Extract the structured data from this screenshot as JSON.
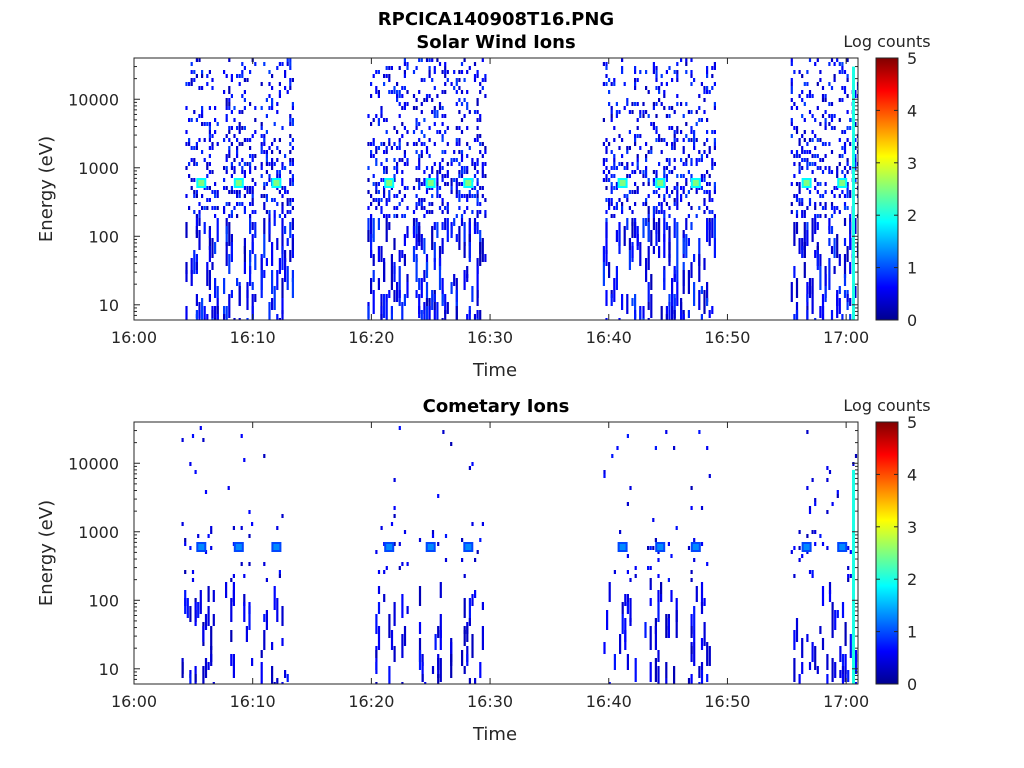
{
  "figure": {
    "title": "RPCICA140908T16.PNG"
  },
  "colormap": "jet",
  "chart_data": [
    {
      "type": "heatmap",
      "title": "Solar Wind Ions",
      "xlabel": "Time",
      "ylabel": "Energy (eV)",
      "yscale": "log",
      "x_ticks": [
        "16:00",
        "16:10",
        "16:20",
        "16:30",
        "16:40",
        "16:50",
        "17:00"
      ],
      "y_ticks": [
        "10",
        "100",
        "1000",
        "10000"
      ],
      "xlim": [
        "16:00",
        "17:01"
      ],
      "ylim": [
        6,
        40000
      ],
      "colorbar": {
        "label": "Log counts",
        "ticks": [
          "0",
          "1",
          "2",
          "3",
          "4",
          "5"
        ],
        "range": [
          0,
          5
        ]
      },
      "peak_energy_eV": 600,
      "peak_log_counts": 2.5,
      "scan_bursts": [
        {
          "start": "16:04:20",
          "end": "16:07:00",
          "peak": "16:05:40"
        },
        {
          "start": "16:07:30",
          "end": "16:10:20",
          "peak": "16:08:50"
        },
        {
          "start": "16:10:40",
          "end": "16:13:20",
          "peak": "16:12:00"
        },
        {
          "start": "16:19:40",
          "end": "16:23:10",
          "peak": "16:21:30"
        },
        {
          "start": "16:23:30",
          "end": "16:26:30",
          "peak": "16:25:00"
        },
        {
          "start": "16:26:40",
          "end": "16:29:40",
          "peak": "16:28:10"
        },
        {
          "start": "16:39:30",
          "end": "16:42:40",
          "peak": "16:41:10"
        },
        {
          "start": "16:42:50",
          "end": "16:45:50",
          "peak": "16:44:20"
        },
        {
          "start": "16:46:00",
          "end": "16:49:00",
          "peak": "16:47:20"
        },
        {
          "start": "16:55:20",
          "end": "16:58:20",
          "peak": "16:56:40"
        },
        {
          "start": "16:58:30",
          "end": "17:01:00",
          "peak": "16:59:40"
        }
      ]
    },
    {
      "type": "heatmap",
      "title": "Cometary Ions",
      "xlabel": "Time",
      "ylabel": "Energy (eV)",
      "yscale": "log",
      "x_ticks": [
        "16:00",
        "16:10",
        "16:20",
        "16:30",
        "16:40",
        "16:50",
        "17:00"
      ],
      "y_ticks": [
        "10",
        "100",
        "1000",
        "10000"
      ],
      "xlim": [
        "16:00",
        "17:01"
      ],
      "ylim": [
        6,
        40000
      ],
      "colorbar": {
        "label": "Log counts",
        "ticks": [
          "0",
          "1",
          "2",
          "3",
          "4",
          "5"
        ],
        "range": [
          0,
          5
        ]
      },
      "peak_energy_eV": 600,
      "peak_log_counts": 1.3,
      "scan_bursts": [
        {
          "start": "16:04:00",
          "end": "16:06:40",
          "peak": "16:05:40"
        },
        {
          "start": "16:07:40",
          "end": "16:10:00",
          "peak": "16:08:50"
        },
        {
          "start": "16:10:40",
          "end": "16:13:00",
          "peak": "16:12:00"
        },
        {
          "start": "16:20:20",
          "end": "16:23:00",
          "peak": "16:21:30"
        },
        {
          "start": "16:24:00",
          "end": "16:26:40",
          "peak": "16:25:00"
        },
        {
          "start": "16:27:20",
          "end": "16:29:40",
          "peak": "16:28:10"
        },
        {
          "start": "16:39:20",
          "end": "16:42:20",
          "peak": "16:41:10"
        },
        {
          "start": "16:43:00",
          "end": "16:45:40",
          "peak": "16:44:20"
        },
        {
          "start": "16:46:40",
          "end": "16:48:40",
          "peak": "16:47:20"
        },
        {
          "start": "16:55:20",
          "end": "16:58:00",
          "peak": "16:56:40"
        },
        {
          "start": "16:58:20",
          "end": "17:01:00",
          "peak": "16:59:40"
        }
      ]
    }
  ]
}
